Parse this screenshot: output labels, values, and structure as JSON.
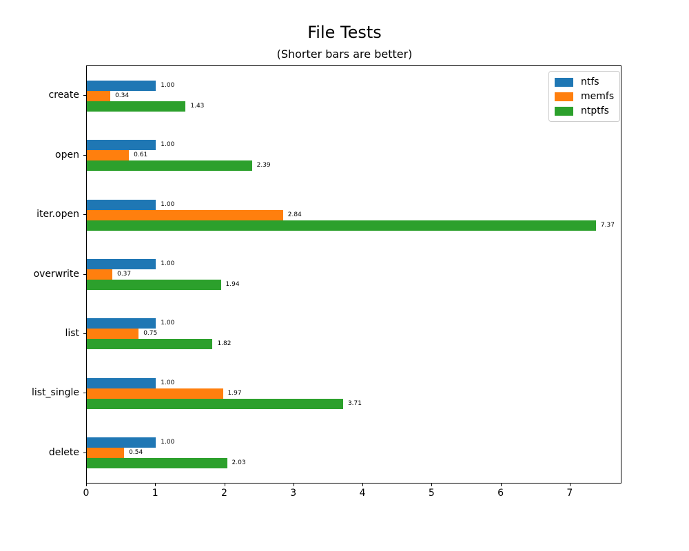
{
  "chart_data": {
    "type": "bar",
    "orientation": "horizontal",
    "title": "File Tests",
    "subtitle": "(Shorter bars are better)",
    "categories": [
      "create",
      "open",
      "iter.open",
      "overwrite",
      "list",
      "list_single",
      "delete"
    ],
    "series": [
      {
        "name": "ntfs",
        "color": "#1f77b4",
        "values": [
          1.0,
          1.0,
          1.0,
          1.0,
          1.0,
          1.0,
          1.0
        ]
      },
      {
        "name": "memfs",
        "color": "#ff7f0e",
        "values": [
          0.34,
          0.61,
          2.84,
          0.37,
          0.75,
          1.97,
          0.54
        ]
      },
      {
        "name": "ntptfs",
        "color": "#2ca02c",
        "values": [
          1.43,
          2.39,
          7.37,
          1.94,
          1.82,
          3.71,
          2.03
        ]
      }
    ],
    "value_labels": [
      [
        "1.00",
        "0.34",
        "1.43"
      ],
      [
        "1.00",
        "0.61",
        "2.39"
      ],
      [
        "1.00",
        "2.84",
        "7.37"
      ],
      [
        "1.00",
        "0.37",
        "1.94"
      ],
      [
        "1.00",
        "0.75",
        "1.82"
      ],
      [
        "1.00",
        "1.97",
        "3.71"
      ],
      [
        "1.00",
        "0.54",
        "2.03"
      ]
    ],
    "xlim": [
      0,
      7.73
    ],
    "xticks": [
      "0",
      "1",
      "2",
      "3",
      "4",
      "5",
      "6",
      "7"
    ],
    "grid": false,
    "legend": {
      "position": "upper-right",
      "entries": [
        "ntfs",
        "memfs",
        "ntptfs"
      ]
    },
    "axis_color": "#000000",
    "legend_border_color": "#cccccc",
    "background_color": "#ffffff"
  }
}
